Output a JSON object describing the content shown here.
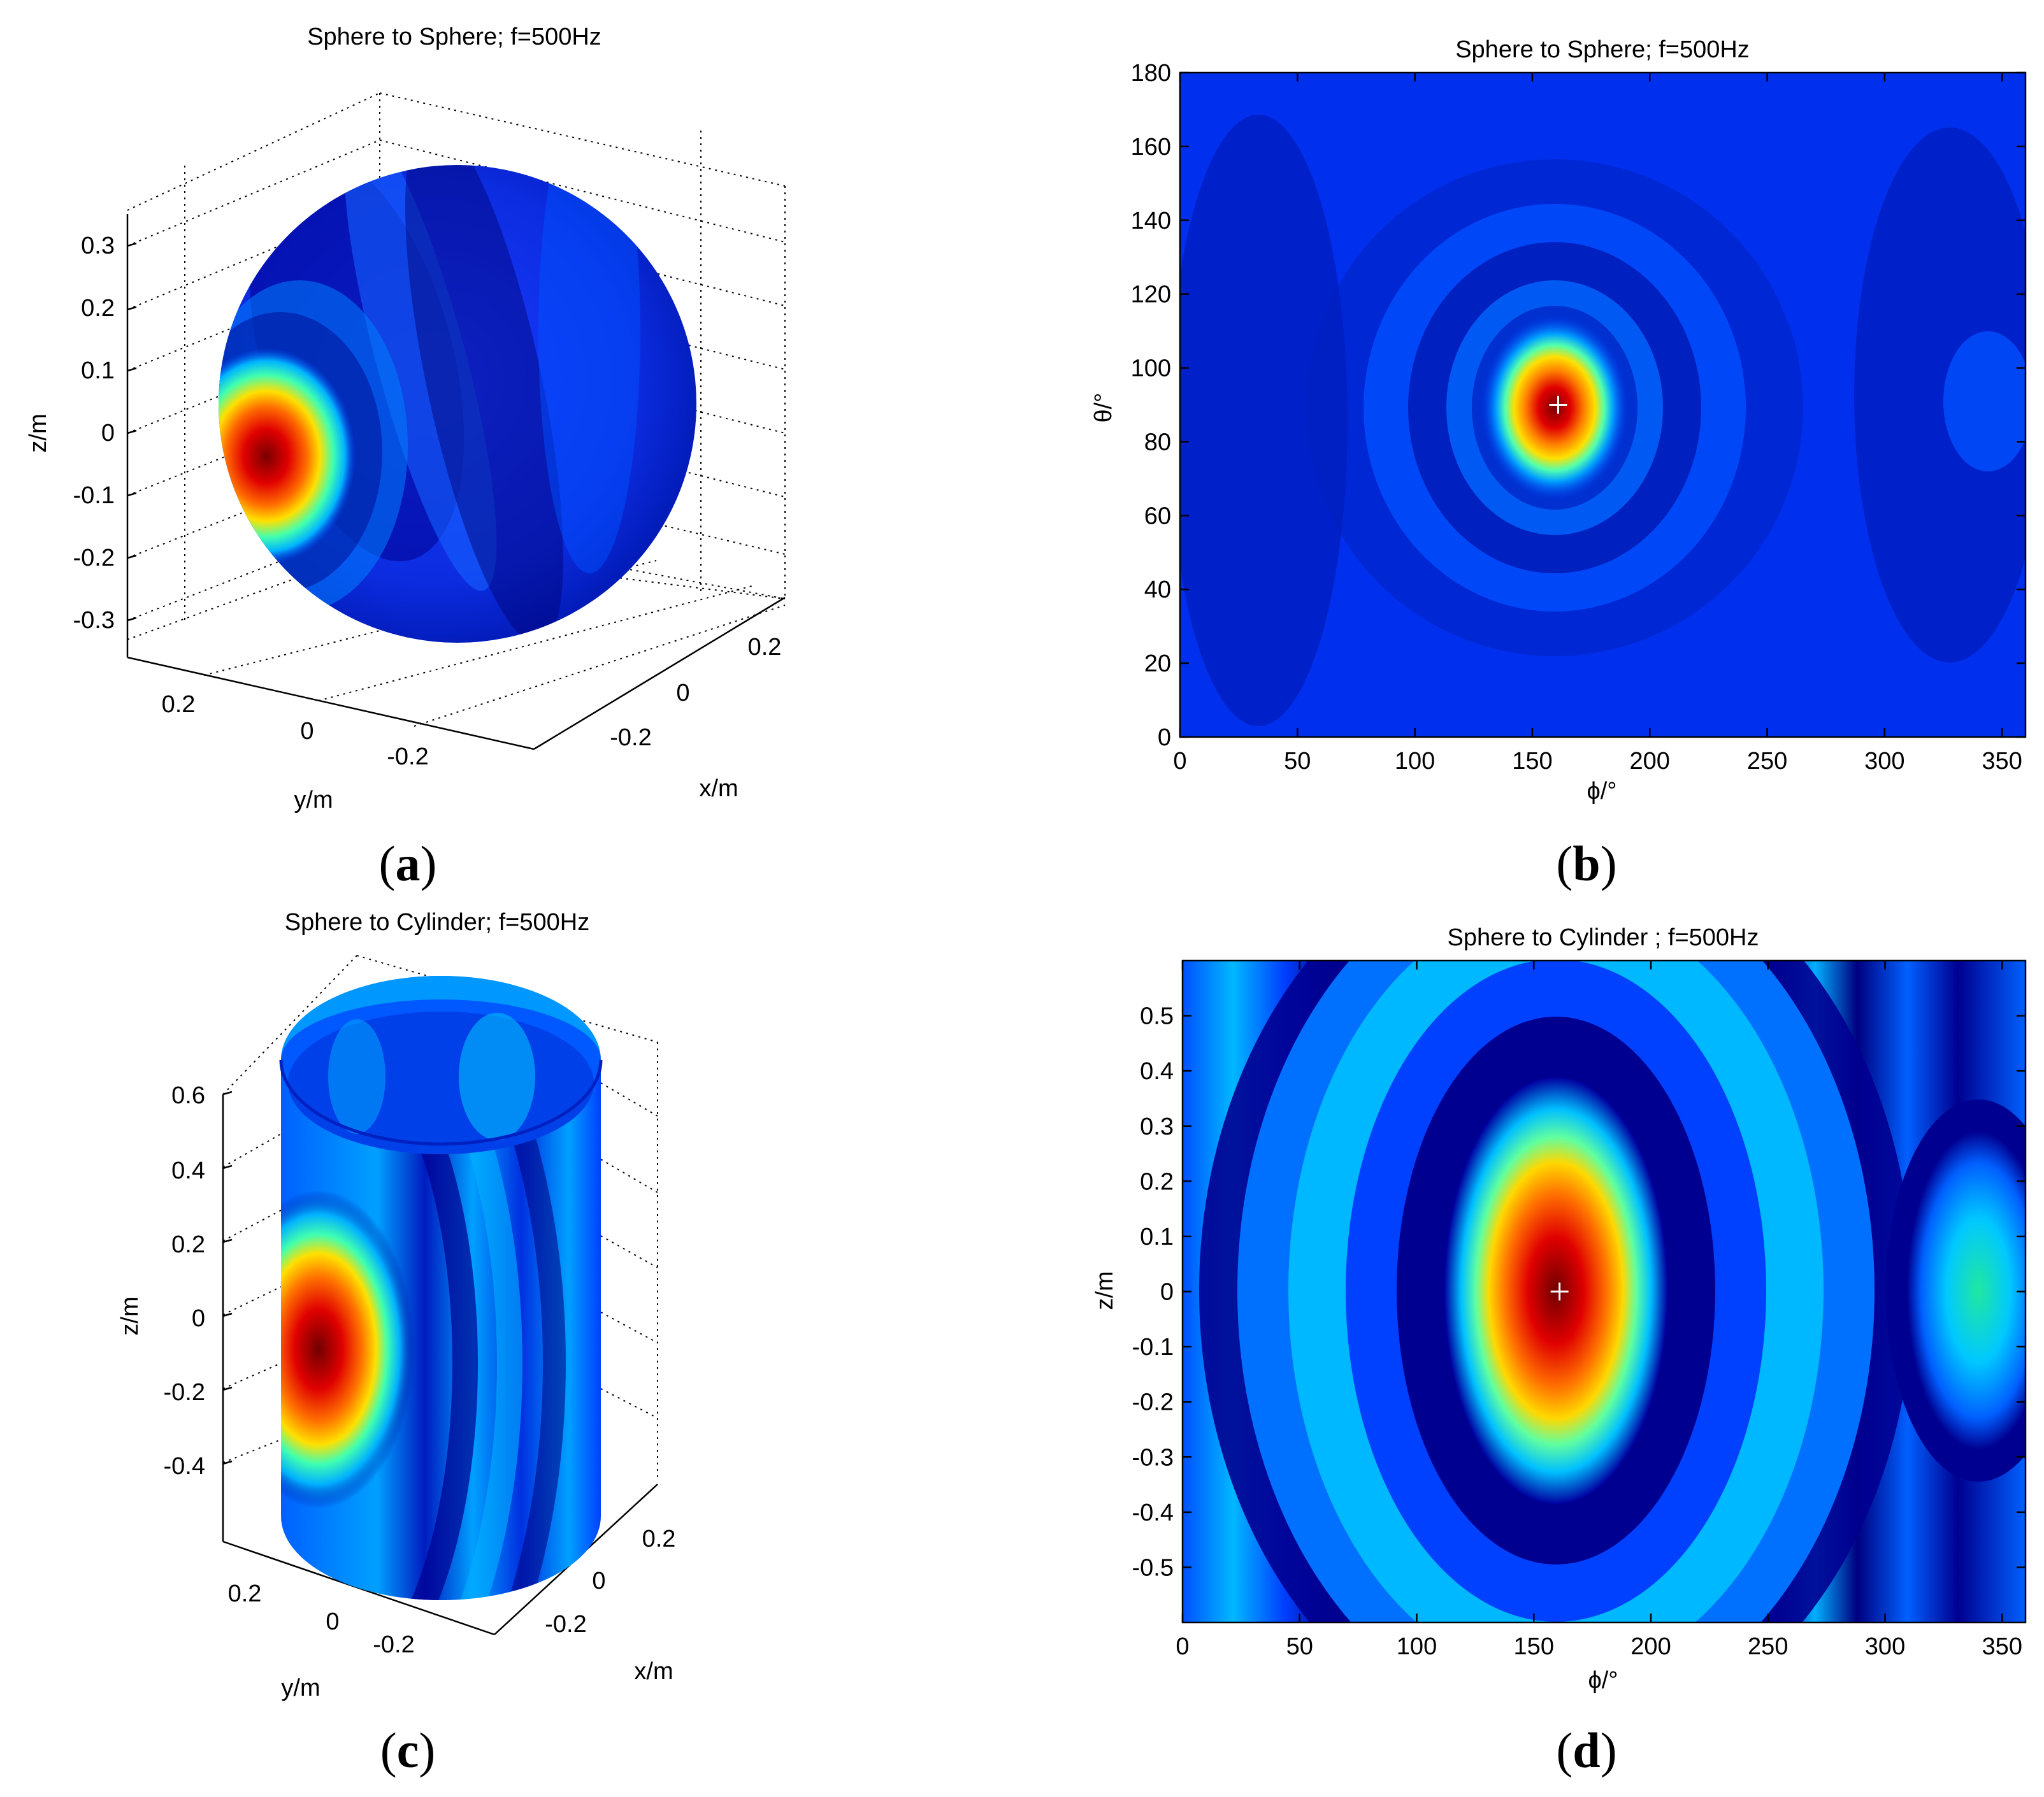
{
  "chart_data": [
    {
      "panel": "(a)",
      "type": "surface3d",
      "title": "Sphere to Sphere; f=500Hz",
      "xlabel": "x/m",
      "ylabel": "y/m",
      "zlabel": "z/m",
      "zticks": [
        "0.3",
        "0.2",
        "0.1",
        "0",
        "-0.1",
        "-0.2",
        "-0.3"
      ],
      "yticks": [
        "0.2",
        "0",
        "-0.2"
      ],
      "xticks": [
        "0.2",
        "0",
        "-0.2"
      ],
      "colormap": "jet",
      "colors": {
        "low": "#00008f",
        "mid": "#0050ff",
        "peak": "#c80000"
      }
    },
    {
      "panel": "(b)",
      "type": "heatmap",
      "title": "Sphere to Sphere; f=500Hz",
      "xlabel": "ϕ/°",
      "ylabel": "θ/°",
      "xlim": [
        0,
        360
      ],
      "ylim": [
        0,
        180
      ],
      "xticks": [
        "0",
        "50",
        "100",
        "150",
        "200",
        "250",
        "300",
        "350"
      ],
      "yticks": [
        "0",
        "20",
        "40",
        "60",
        "80",
        "100",
        "120",
        "140",
        "160",
        "180"
      ],
      "marker": {
        "x": 161,
        "y": 90,
        "symbol": "+"
      },
      "colormap": "jet",
      "colors": {
        "background": "#0028e6",
        "peak": "#c80000"
      }
    },
    {
      "panel": "(c)",
      "type": "surface3d",
      "title": "Sphere to Cylinder; f=500Hz",
      "xlabel": "x/m",
      "ylabel": "y/m",
      "zlabel": "z/m",
      "zticks": [
        "0.6",
        "0.4",
        "0.2",
        "0",
        "-0.2",
        "-0.4"
      ],
      "yticks": [
        "0.2",
        "0",
        "-0.2"
      ],
      "xticks": [
        "0.2",
        "0",
        "-0.2"
      ],
      "colormap": "jet"
    },
    {
      "panel": "(d)",
      "type": "heatmap",
      "title": "Sphere to Cylinder ; f=500Hz",
      "xlabel": "ϕ/°",
      "ylabel": "z/m",
      "xlim": [
        0,
        360
      ],
      "ylim": [
        -0.6,
        0.6
      ],
      "xticks": [
        "0",
        "50",
        "100",
        "150",
        "200",
        "250",
        "300",
        "350"
      ],
      "yticks": [
        "0.5",
        "0.4",
        "0.3",
        "0.2",
        "0.1",
        "0",
        "-0.1",
        "-0.2",
        "-0.3",
        "-0.4",
        "-0.5"
      ],
      "marker": {
        "x": 161,
        "y": 0,
        "symbol": "+"
      },
      "colormap": "jet",
      "colors": {
        "background": "#0064ff",
        "peak": "#c80000"
      }
    }
  ]
}
